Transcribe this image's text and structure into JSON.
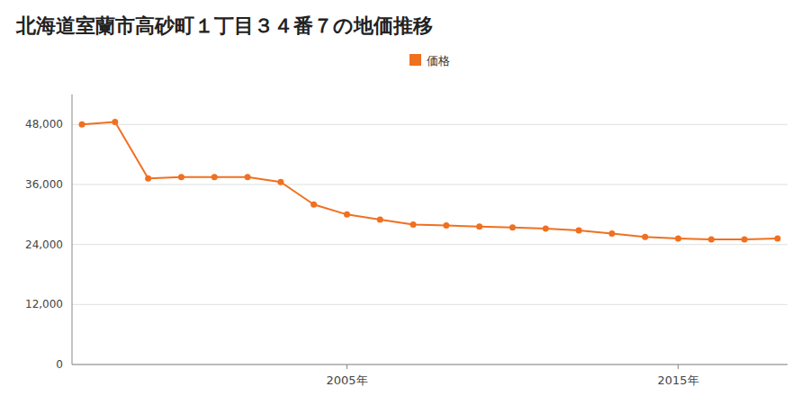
{
  "chart_data": {
    "type": "line",
    "title": "北海道室蘭市高砂町１丁目３４番７の地価推移",
    "x": [
      1997,
      1998,
      1999,
      2000,
      2001,
      2002,
      2003,
      2004,
      2005,
      2006,
      2007,
      2008,
      2009,
      2010,
      2011,
      2012,
      2013,
      2014,
      2015,
      2016,
      2017,
      2018
    ],
    "series": [
      {
        "name": "価格",
        "color": "#f07020",
        "marker": "circle",
        "values": [
          48000,
          48500,
          37200,
          37500,
          37500,
          37500,
          36500,
          32000,
          30000,
          29000,
          28000,
          27800,
          27600,
          27400,
          27200,
          26800,
          26200,
          25500,
          25200,
          25000,
          25000,
          25200
        ]
      }
    ],
    "xlim": [
      1996.7,
      2018.3
    ],
    "xticks": [
      {
        "value": 2005,
        "label": "2005年"
      },
      {
        "value": 2015,
        "label": "2015年"
      }
    ],
    "ylim": [
      0,
      54000
    ],
    "yticks": [
      0,
      {
        "value": 12000,
        "label": "12,000"
      },
      {
        "value": 24000,
        "label": "24,000"
      },
      {
        "value": 36000,
        "label": "36,000"
      },
      {
        "value": 48000,
        "label": "48,000"
      }
    ],
    "grid": true,
    "legend": "top"
  }
}
